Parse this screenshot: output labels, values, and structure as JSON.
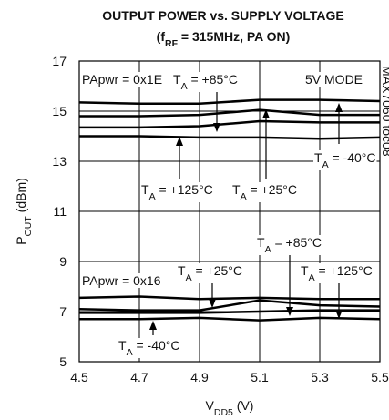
{
  "chart_data": {
    "type": "line",
    "title": "OUTPUT POWER vs. SUPPLY VOLTAGE",
    "subtitle": [
      "(f",
      "RF",
      " = 315MHz, PA ON)"
    ],
    "x_label": [
      "V",
      "DD5",
      " (V)"
    ],
    "y_label": [
      "P",
      "OUT",
      " (dBm)"
    ],
    "note": "MAX7060 toc08",
    "x": [
      4.5,
      4.7,
      4.9,
      5.1,
      5.3,
      5.5
    ],
    "series": [
      {
        "color": "#000000",
        "values": [
          15.35,
          15.3,
          15.3,
          15.45,
          15.45,
          15.4
        ]
      },
      {
        "color": "#000000",
        "values": [
          14.8,
          14.8,
          14.85,
          15.05,
          14.85,
          14.85
        ]
      },
      {
        "color": "#000000",
        "values": [
          14.35,
          14.35,
          14.4,
          14.6,
          14.55,
          14.55
        ]
      },
      {
        "color": "#000000",
        "values": [
          14.0,
          14.0,
          13.95,
          13.95,
          13.9,
          13.95
        ]
      },
      {
        "color": "#000000",
        "values": [
          7.55,
          7.6,
          7.5,
          7.55,
          7.5,
          7.5
        ]
      },
      {
        "color": "#000000",
        "values": [
          7.1,
          7.05,
          7.05,
          7.45,
          7.25,
          7.2
        ]
      },
      {
        "color": "#000000",
        "values": [
          6.95,
          6.95,
          6.95,
          7.0,
          7.05,
          7.05
        ]
      },
      {
        "color": "#000000",
        "values": [
          6.7,
          6.7,
          6.75,
          6.65,
          6.75,
          6.7
        ]
      }
    ],
    "xlim": [
      4.5,
      5.5
    ],
    "ylim": [
      5,
      17
    ],
    "xticks": [
      4.5,
      4.7,
      4.9,
      5.1,
      5.3,
      5.5
    ],
    "yticks": [
      5,
      7,
      9,
      11,
      13,
      15,
      17
    ],
    "grid": true,
    "annotations": [
      [
        "PApwr = 0x1E"
      ],
      [
        "T",
        "A",
        " = +85°C"
      ],
      [
        "5V MODE"
      ],
      [
        "T",
        "A",
        " = -40°C"
      ],
      [
        "T",
        "A",
        " = +125°C"
      ],
      [
        "T",
        "A",
        " = +25°C"
      ],
      [
        "T",
        "A",
        " = +85°C"
      ],
      [
        "T",
        "A",
        " = +25°C"
      ],
      [
        "T",
        "A",
        " = +125°C"
      ],
      [
        "PApwr = 0x16"
      ],
      [
        "T",
        "A",
        " = -40°C"
      ]
    ]
  }
}
